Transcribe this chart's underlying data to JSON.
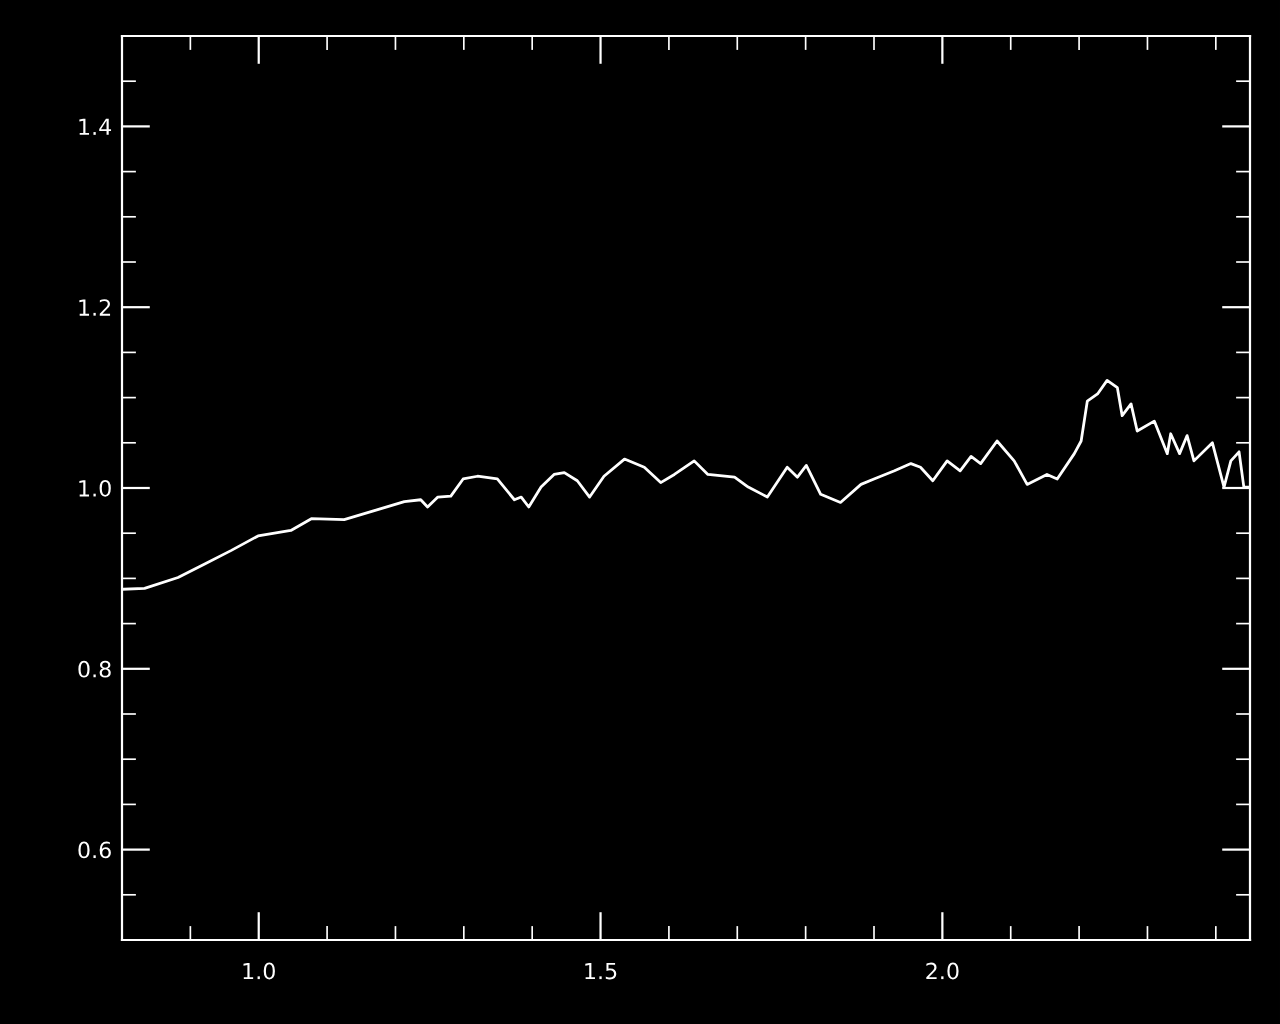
{
  "chart_data": {
    "type": "line",
    "x": [
      0.802,
      0.833,
      0.882,
      0.921,
      0.96,
      0.999,
      1.047,
      1.077,
      1.125,
      1.174,
      1.213,
      1.237,
      1.247,
      1.262,
      1.281,
      1.299,
      1.32,
      1.349,
      1.374,
      1.384,
      1.395,
      1.413,
      1.432,
      1.447,
      1.466,
      1.484,
      1.505,
      1.535,
      1.564,
      1.588,
      1.608,
      1.637,
      1.657,
      1.696,
      1.716,
      1.744,
      1.773,
      1.788,
      1.801,
      1.822,
      1.851,
      1.881,
      1.9,
      1.93,
      1.954,
      1.968,
      1.986,
      2.007,
      2.026,
      2.042,
      2.056,
      2.08,
      2.105,
      2.124,
      2.153,
      2.168,
      2.193,
      2.203,
      2.212,
      2.227,
      2.241,
      2.256,
      2.263,
      2.276,
      2.285,
      2.31,
      2.329,
      2.334,
      2.347,
      2.358,
      2.368,
      2.395,
      2.412,
      2.422,
      2.434,
      2.441,
      2.449
    ],
    "series": [
      {
        "color": "#ffffff",
        "values": [
          0.888,
          0.889,
          0.901,
          0.916,
          0.931,
          0.947,
          0.953,
          0.966,
          0.965,
          0.976,
          0.985,
          0.987,
          0.979,
          0.99,
          0.991,
          1.01,
          1.013,
          1.01,
          0.987,
          0.99,
          0.979,
          1.001,
          1.015,
          1.017,
          1.008,
          0.99,
          1.013,
          1.032,
          1.023,
          1.006,
          1.015,
          1.03,
          1.015,
          1.012,
          1.001,
          0.99,
          1.023,
          1.012,
          1.025,
          0.993,
          0.984,
          1.004,
          1.01,
          1.019,
          1.027,
          1.023,
          1.008,
          1.03,
          1.019,
          1.035,
          1.027,
          1.052,
          1.03,
          1.004,
          1.015,
          1.01,
          1.038,
          1.052,
          1.096,
          1.104,
          1.119,
          1.111,
          1.08,
          1.093,
          1.063,
          1.074,
          1.038,
          1.06,
          1.038,
          1.058,
          1.03,
          1.05,
          1.001,
          1.03,
          1.04,
          1.001,
          1.001
        ]
      }
    ],
    "xlim": [
      0.8,
      2.45
    ],
    "ylim": [
      0.5,
      1.5
    ],
    "xticks": [
      {
        "value": 0.9,
        "label": null
      },
      {
        "value": 1.0,
        "label": "1.0"
      },
      {
        "value": 1.1,
        "label": null
      },
      {
        "value": 1.2,
        "label": null
      },
      {
        "value": 1.3,
        "label": null
      },
      {
        "value": 1.4,
        "label": null
      },
      {
        "value": 1.5,
        "label": "1.5"
      },
      {
        "value": 1.6,
        "label": null
      },
      {
        "value": 1.7,
        "label": null
      },
      {
        "value": 1.8,
        "label": null
      },
      {
        "value": 1.9,
        "label": null
      },
      {
        "value": 2.0,
        "label": "2.0"
      },
      {
        "value": 2.1,
        "label": null
      },
      {
        "value": 2.2,
        "label": null
      },
      {
        "value": 2.3,
        "label": null
      },
      {
        "value": 2.4,
        "label": null
      }
    ],
    "yticks": [
      {
        "value": 0.55,
        "label": null
      },
      {
        "value": 0.6,
        "label": "0.6"
      },
      {
        "value": 0.65,
        "label": null
      },
      {
        "value": 0.7,
        "label": null
      },
      {
        "value": 0.75,
        "label": null
      },
      {
        "value": 0.8,
        "label": "0.8"
      },
      {
        "value": 0.85,
        "label": null
      },
      {
        "value": 0.9,
        "label": null
      },
      {
        "value": 0.95,
        "label": null
      },
      {
        "value": 1.0,
        "label": "1.0"
      },
      {
        "value": 1.05,
        "label": null
      },
      {
        "value": 1.1,
        "label": null
      },
      {
        "value": 1.15,
        "label": null
      },
      {
        "value": 1.2,
        "label": "1.2"
      },
      {
        "value": 1.25,
        "label": null
      },
      {
        "value": 1.3,
        "label": null
      },
      {
        "value": 1.35,
        "label": null
      },
      {
        "value": 1.4,
        "label": "1.4"
      },
      {
        "value": 1.45,
        "label": null
      }
    ],
    "grid": false,
    "marker": "none",
    "line_style": "solid"
  }
}
